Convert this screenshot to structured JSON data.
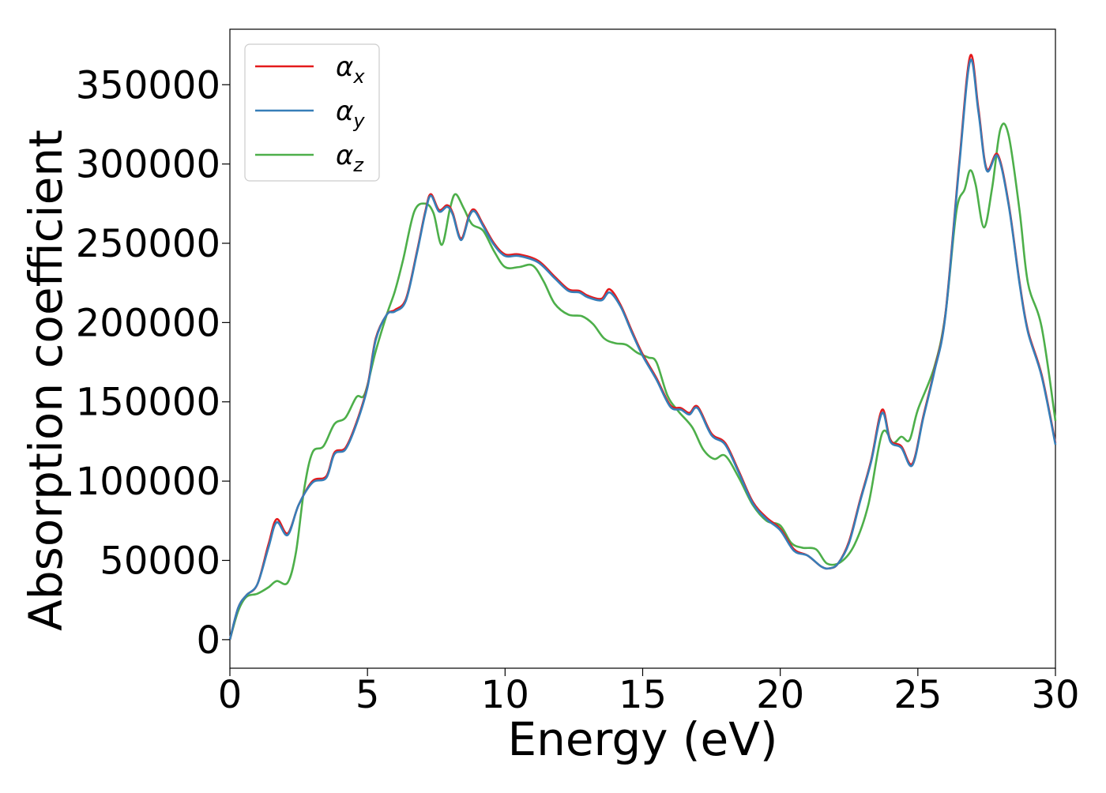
{
  "chart_data": {
    "type": "line",
    "title": "",
    "xlabel": "Energy (eV)",
    "ylabel": "Absorption coefficient",
    "xlim": [
      0,
      30
    ],
    "ylim": [
      -18000,
      385000
    ],
    "x_ticks": [
      0,
      5,
      10,
      15,
      20,
      25,
      30
    ],
    "y_ticks": [
      0,
      50000,
      100000,
      150000,
      200000,
      250000,
      300000,
      350000
    ],
    "grid": false,
    "legend_position": "top-left",
    "series": [
      {
        "name": "α",
        "subscript": "x",
        "color": "#e41a1c",
        "points": [
          [
            0,
            0
          ],
          [
            0.3,
            20000
          ],
          [
            0.6,
            28000
          ],
          [
            1.0,
            35000
          ],
          [
            1.4,
            60000
          ],
          [
            1.7,
            76000
          ],
          [
            2.1,
            67000
          ],
          [
            2.5,
            85000
          ],
          [
            3.0,
            100000
          ],
          [
            3.5,
            103000
          ],
          [
            3.8,
            118000
          ],
          [
            4.2,
            121000
          ],
          [
            4.6,
            137000
          ],
          [
            5.0,
            160000
          ],
          [
            5.3,
            190000
          ],
          [
            5.7,
            205000
          ],
          [
            6.0,
            208000
          ],
          [
            6.4,
            215000
          ],
          [
            6.8,
            245000
          ],
          [
            7.1,
            270000
          ],
          [
            7.3,
            281000
          ],
          [
            7.6,
            271000
          ],
          [
            7.9,
            274000
          ],
          [
            8.1,
            269000
          ],
          [
            8.4,
            253000
          ],
          [
            8.7,
            268000
          ],
          [
            8.9,
            271000
          ],
          [
            9.2,
            262000
          ],
          [
            9.6,
            250000
          ],
          [
            10.0,
            243000
          ],
          [
            10.5,
            243000
          ],
          [
            11.2,
            239000
          ],
          [
            11.8,
            229000
          ],
          [
            12.3,
            221000
          ],
          [
            12.7,
            220000
          ],
          [
            13.0,
            217000
          ],
          [
            13.5,
            215000
          ],
          [
            13.8,
            221000
          ],
          [
            14.2,
            211000
          ],
          [
            14.6,
            195000
          ],
          [
            15.0,
            180000
          ],
          [
            15.5,
            165000
          ],
          [
            16.0,
            148000
          ],
          [
            16.4,
            146000
          ],
          [
            16.7,
            143000
          ],
          [
            17.0,
            147000
          ],
          [
            17.5,
            130000
          ],
          [
            18.0,
            124000
          ],
          [
            18.5,
            106000
          ],
          [
            19.0,
            87000
          ],
          [
            19.5,
            77000
          ],
          [
            20.0,
            70000
          ],
          [
            20.5,
            57000
          ],
          [
            21.0,
            53000
          ],
          [
            21.5,
            46000
          ],
          [
            21.8,
            45000
          ],
          [
            22.1,
            48000
          ],
          [
            22.5,
            62000
          ],
          [
            22.9,
            88000
          ],
          [
            23.3,
            113000
          ],
          [
            23.7,
            145000
          ],
          [
            24.0,
            126000
          ],
          [
            24.4,
            122000
          ],
          [
            24.8,
            111000
          ],
          [
            25.2,
            141000
          ],
          [
            25.6,
            170000
          ],
          [
            26.0,
            205000
          ],
          [
            26.5,
            300000
          ],
          [
            26.9,
            368000
          ],
          [
            27.2,
            335000
          ],
          [
            27.5,
            297000
          ],
          [
            27.9,
            306000
          ],
          [
            28.3,
            275000
          ],
          [
            28.7,
            225000
          ],
          [
            29.0,
            195000
          ],
          [
            29.5,
            167000
          ],
          [
            30.0,
            124000
          ]
        ]
      },
      {
        "name": "α",
        "subscript": "y",
        "color": "#377eb8",
        "points": [
          [
            0,
            0
          ],
          [
            0.3,
            20000
          ],
          [
            0.6,
            28000
          ],
          [
            1.0,
            35000
          ],
          [
            1.4,
            58000
          ],
          [
            1.7,
            74000
          ],
          [
            2.1,
            66000
          ],
          [
            2.5,
            85000
          ],
          [
            3.0,
            99000
          ],
          [
            3.5,
            102000
          ],
          [
            3.8,
            117000
          ],
          [
            4.2,
            120000
          ],
          [
            4.6,
            136000
          ],
          [
            5.0,
            159000
          ],
          [
            5.3,
            189000
          ],
          [
            5.7,
            205000
          ],
          [
            6.0,
            207000
          ],
          [
            6.4,
            214000
          ],
          [
            6.8,
            244000
          ],
          [
            7.1,
            269000
          ],
          [
            7.3,
            280000
          ],
          [
            7.6,
            270000
          ],
          [
            7.9,
            273000
          ],
          [
            8.1,
            268000
          ],
          [
            8.4,
            252000
          ],
          [
            8.7,
            267000
          ],
          [
            8.9,
            270000
          ],
          [
            9.2,
            261000
          ],
          [
            9.6,
            249000
          ],
          [
            10.0,
            242000
          ],
          [
            10.5,
            242000
          ],
          [
            11.2,
            238000
          ],
          [
            11.8,
            228000
          ],
          [
            12.3,
            220000
          ],
          [
            12.7,
            219000
          ],
          [
            13.0,
            216000
          ],
          [
            13.5,
            214000
          ],
          [
            13.8,
            219000
          ],
          [
            14.2,
            210000
          ],
          [
            14.6,
            194000
          ],
          [
            15.0,
            179000
          ],
          [
            15.5,
            164000
          ],
          [
            16.0,
            147000
          ],
          [
            16.4,
            145000
          ],
          [
            16.7,
            142000
          ],
          [
            17.0,
            146000
          ],
          [
            17.5,
            129000
          ],
          [
            18.0,
            123000
          ],
          [
            18.5,
            105000
          ],
          [
            19.0,
            86000
          ],
          [
            19.5,
            76000
          ],
          [
            20.0,
            69000
          ],
          [
            20.5,
            56000
          ],
          [
            21.0,
            53000
          ],
          [
            21.5,
            46000
          ],
          [
            21.8,
            45000
          ],
          [
            22.1,
            48000
          ],
          [
            22.5,
            61000
          ],
          [
            22.9,
            87000
          ],
          [
            23.3,
            112000
          ],
          [
            23.7,
            143000
          ],
          [
            24.0,
            125000
          ],
          [
            24.4,
            121000
          ],
          [
            24.8,
            110000
          ],
          [
            25.2,
            140000
          ],
          [
            25.6,
            169000
          ],
          [
            26.0,
            204000
          ],
          [
            26.5,
            298000
          ],
          [
            26.9,
            365000
          ],
          [
            27.2,
            333000
          ],
          [
            27.5,
            296000
          ],
          [
            27.9,
            305000
          ],
          [
            28.3,
            274000
          ],
          [
            28.7,
            224000
          ],
          [
            29.0,
            194000
          ],
          [
            29.5,
            166000
          ],
          [
            30.0,
            123000
          ]
        ]
      },
      {
        "name": "α",
        "subscript": "z",
        "color": "#4daf4a",
        "points": [
          [
            0,
            0
          ],
          [
            0.3,
            18000
          ],
          [
            0.6,
            27000
          ],
          [
            1.0,
            29000
          ],
          [
            1.4,
            33000
          ],
          [
            1.7,
            37000
          ],
          [
            2.1,
            36000
          ],
          [
            2.4,
            55000
          ],
          [
            2.7,
            95000
          ],
          [
            3.0,
            118000
          ],
          [
            3.4,
            122000
          ],
          [
            3.8,
            136000
          ],
          [
            4.2,
            140000
          ],
          [
            4.6,
            153000
          ],
          [
            4.9,
            155000
          ],
          [
            5.3,
            182000
          ],
          [
            5.7,
            205000
          ],
          [
            6.0,
            220000
          ],
          [
            6.3,
            240000
          ],
          [
            6.7,
            270000
          ],
          [
            7.1,
            275000
          ],
          [
            7.4,
            269000
          ],
          [
            7.7,
            249000
          ],
          [
            8.0,
            272000
          ],
          [
            8.2,
            281000
          ],
          [
            8.5,
            272000
          ],
          [
            8.8,
            262000
          ],
          [
            9.2,
            258000
          ],
          [
            9.6,
            245000
          ],
          [
            10.0,
            235000
          ],
          [
            10.5,
            235000
          ],
          [
            11.0,
            236000
          ],
          [
            11.4,
            226000
          ],
          [
            11.8,
            212000
          ],
          [
            12.3,
            205000
          ],
          [
            12.8,
            204000
          ],
          [
            13.2,
            199000
          ],
          [
            13.6,
            190000
          ],
          [
            14.0,
            187000
          ],
          [
            14.4,
            186000
          ],
          [
            14.8,
            181000
          ],
          [
            15.2,
            178000
          ],
          [
            15.5,
            175000
          ],
          [
            15.9,
            154000
          ],
          [
            16.3,
            144000
          ],
          [
            16.8,
            134000
          ],
          [
            17.2,
            120000
          ],
          [
            17.6,
            114000
          ],
          [
            18.0,
            116000
          ],
          [
            18.5,
            102000
          ],
          [
            19.0,
            85000
          ],
          [
            19.5,
            75000
          ],
          [
            20.0,
            72000
          ],
          [
            20.4,
            61000
          ],
          [
            20.8,
            58000
          ],
          [
            21.3,
            57000
          ],
          [
            21.7,
            48000
          ],
          [
            22.2,
            49000
          ],
          [
            22.7,
            60000
          ],
          [
            23.2,
            85000
          ],
          [
            23.7,
            130000
          ],
          [
            24.1,
            124000
          ],
          [
            24.4,
            128000
          ],
          [
            24.7,
            126000
          ],
          [
            25.0,
            145000
          ],
          [
            25.6,
            172000
          ],
          [
            26.0,
            205000
          ],
          [
            26.4,
            270000
          ],
          [
            26.7,
            284000
          ],
          [
            26.9,
            296000
          ],
          [
            27.1,
            287000
          ],
          [
            27.4,
            260000
          ],
          [
            27.7,
            285000
          ],
          [
            28.0,
            322000
          ],
          [
            28.3,
            318000
          ],
          [
            28.7,
            270000
          ],
          [
            29.0,
            225000
          ],
          [
            29.5,
            197000
          ],
          [
            30.0,
            138000
          ]
        ]
      }
    ]
  }
}
